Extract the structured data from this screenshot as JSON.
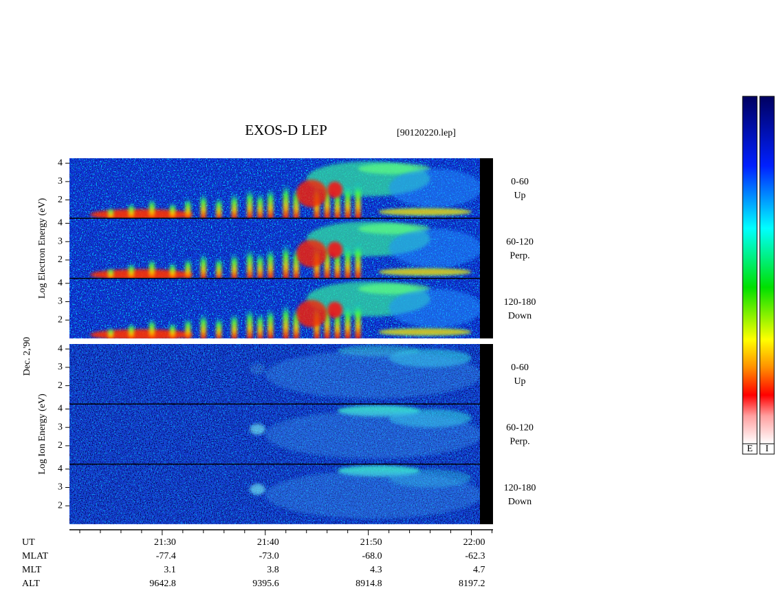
{
  "chart_data": {
    "type": "spectrogram",
    "title": "EXOS-D LEP",
    "file": "[90120220.lep]",
    "date": "Dec. 2,'90",
    "groups": [
      {
        "ylabel": "Log  Electron  Energy (eV)",
        "panels": [
          {
            "name": "0-60",
            "sub": "Up"
          },
          {
            "name": "60-120",
            "sub": "Perp."
          },
          {
            "name": "120-180",
            "sub": "Down"
          }
        ]
      },
      {
        "ylabel": "Log  Ion  Energy (eV)",
        "panels": [
          {
            "name": "0-60",
            "sub": "Up"
          },
          {
            "name": "60-120",
            "sub": "Perp."
          },
          {
            "name": "120-180",
            "sub": "Down"
          }
        ]
      }
    ],
    "ylim": [
      1,
      4.27
    ],
    "yticks": [
      2,
      3,
      4
    ],
    "xlim": [
      1281,
      1322.1
    ],
    "xticks": [
      {
        "value": 1290,
        "label": "21:30"
      },
      {
        "value": 1300,
        "label": "21:40"
      },
      {
        "value": 1310,
        "label": "21:50"
      },
      {
        "value": 1320,
        "label": "22:00"
      }
    ],
    "xminorticks": [
      1282,
      1284,
      1286,
      1288,
      1292,
      1294,
      1296,
      1298,
      1302,
      1304,
      1306,
      1308,
      1312,
      1314,
      1316,
      1318,
      1322
    ],
    "xlabel": "UT",
    "info_rows": [
      {
        "name": "MLAT",
        "values": [
          "-77.4",
          "-73.0",
          "-68.0",
          "-62.3"
        ]
      },
      {
        "name": "MLT",
        "values": [
          "3.1",
          "3.8",
          "4.3",
          "4.7"
        ]
      },
      {
        "name": "ALT",
        "values": [
          "9642.8",
          "9395.6",
          "8914.8",
          "8197.2"
        ]
      }
    ],
    "colorbar_labels": [
      "E",
      "I"
    ]
  }
}
